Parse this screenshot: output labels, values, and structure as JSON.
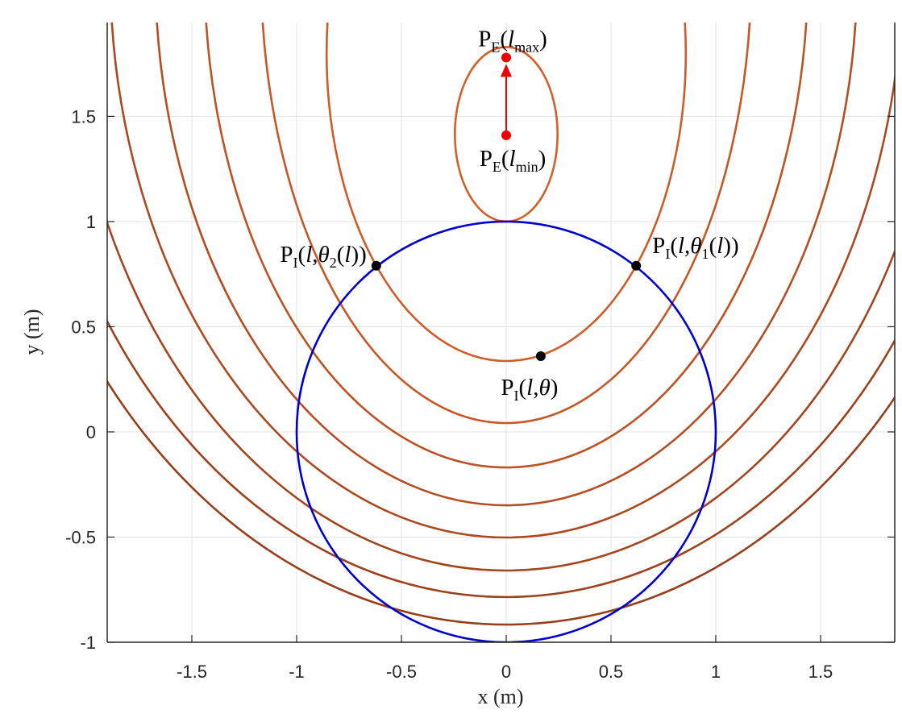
{
  "chart_data": {
    "type": "contour",
    "xlabel": "x (m)",
    "ylabel": "y (m)",
    "xlim": [
      -1.904,
      1.854
    ],
    "ylim": [
      -1,
      1.946
    ],
    "xticks": [
      -1.5,
      -1,
      -0.5,
      0,
      0.5,
      1,
      1.5
    ],
    "yticks": [
      -1,
      -0.5,
      0,
      0.5,
      1,
      1.5
    ],
    "grid": true,
    "curves": [
      {
        "color": "#d2602a",
        "cx": 0,
        "cy": 1.415,
        "rx": 0.245,
        "ry": 0.415
      },
      {
        "color": "#cd5c28",
        "cx": 0,
        "cy": 1.8,
        "rx": 0.857,
        "ry": 1.463
      },
      {
        "color": "#c65726",
        "cx": 0,
        "cy": 2.2,
        "rx": 1.17,
        "ry": 2.158
      },
      {
        "color": "#bd5224",
        "cx": 0,
        "cy": 2.2,
        "rx": 1.44,
        "ry": 2.369
      },
      {
        "color": "#b44d22",
        "cx": 0,
        "cy": 2.2,
        "rx": 1.675,
        "ry": 2.549
      },
      {
        "color": "#ab4920",
        "cx": 0,
        "cy": 2.2,
        "rx": 1.89,
        "ry": 2.702
      },
      {
        "color": "#a3451e",
        "cx": 0,
        "cy": 2.2,
        "rx": 2.1,
        "ry": 2.859
      },
      {
        "color": "#9c421c",
        "cx": 0,
        "cy": 2.2,
        "rx": 2.3,
        "ry": 2.985
      },
      {
        "color": "#963f1b",
        "cx": 0,
        "cy": 2.2,
        "rx": 2.45,
        "ry": 3.116
      },
      {
        "color": "#0000cc",
        "cx": 0,
        "cy": 0,
        "rx": 1,
        "ry": 1
      }
    ],
    "points": [
      {
        "x": 0,
        "y": 1.78,
        "color": "#ee0000",
        "label": [
          {
            "text": "P"
          },
          {
            "text": "E",
            "style": "sub"
          },
          {
            "text": "("
          },
          {
            "text": "l",
            "style": "italic"
          },
          {
            "text": "max",
            "style": "sub"
          },
          {
            "text": ")"
          }
        ]
      },
      {
        "x": 0,
        "y": 1.41,
        "color": "#ee0000",
        "label": [
          {
            "text": "P"
          },
          {
            "text": "E",
            "style": "sub"
          },
          {
            "text": "("
          },
          {
            "text": "l",
            "style": "italic"
          },
          {
            "text": "min",
            "style": "sub"
          },
          {
            "text": ")"
          }
        ]
      },
      {
        "x": -0.62,
        "y": 0.79,
        "color": "#000000",
        "label": [
          {
            "text": "P"
          },
          {
            "text": "I",
            "style": "sub"
          },
          {
            "text": "("
          },
          {
            "text": "l",
            "style": "italic"
          },
          {
            "text": ","
          },
          {
            "text": "θ",
            "style": "italic"
          },
          {
            "text": "2",
            "style": "sub"
          },
          {
            "text": "("
          },
          {
            "text": "l",
            "style": "italic"
          },
          {
            "text": "))"
          }
        ]
      },
      {
        "x": 0.62,
        "y": 0.79,
        "color": "#000000",
        "label": [
          {
            "text": "P"
          },
          {
            "text": "I",
            "style": "sub"
          },
          {
            "text": "("
          },
          {
            "text": "l",
            "style": "italic"
          },
          {
            "text": ","
          },
          {
            "text": "θ",
            "style": "italic"
          },
          {
            "text": "1",
            "style": "sub"
          },
          {
            "text": "("
          },
          {
            "text": "l",
            "style": "italic"
          },
          {
            "text": "))"
          }
        ]
      },
      {
        "x": 0.165,
        "y": 0.36,
        "color": "#000000",
        "label": [
          {
            "text": "P"
          },
          {
            "text": "I",
            "style": "sub"
          },
          {
            "text": "("
          },
          {
            "text": "l",
            "style": "italic"
          },
          {
            "text": ","
          },
          {
            "text": "θ",
            "style": "italic"
          },
          {
            "text": ")"
          }
        ]
      }
    ]
  }
}
